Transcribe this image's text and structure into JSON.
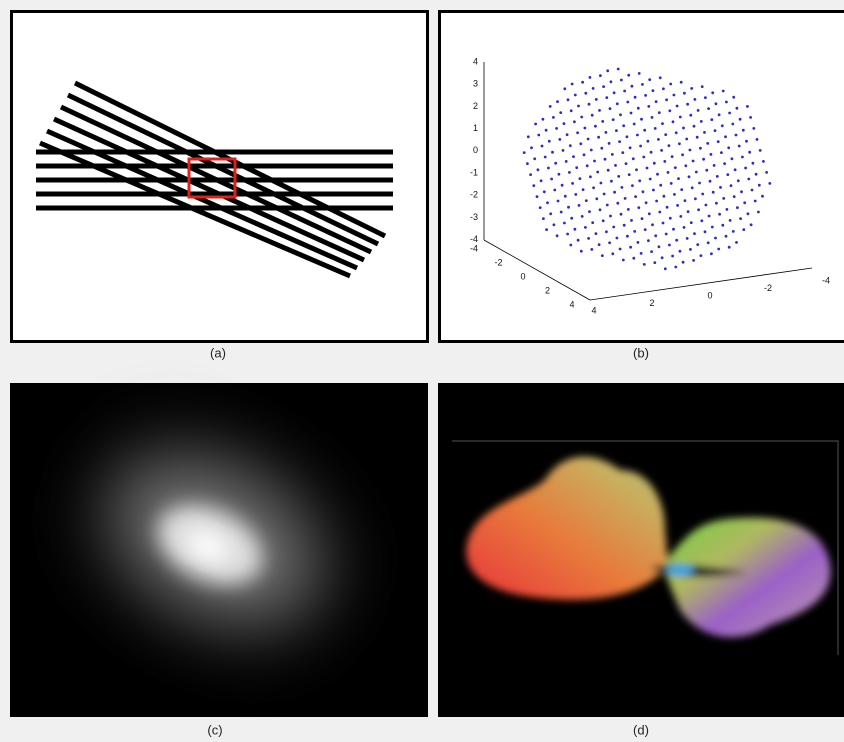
{
  "panels": [
    {
      "caption": "(a)"
    },
    {
      "caption": "(b)",
      "axes": {
        "vertical_ticks": [
          4,
          3,
          2,
          1,
          0,
          -1,
          -2,
          -3,
          -4
        ],
        "depth_ticks": [
          -4,
          -2,
          0,
          2,
          4
        ],
        "horizontal_ticks": [
          4,
          2,
          0,
          -2,
          -4
        ]
      }
    },
    {
      "caption": "(c)"
    },
    {
      "caption": "(d)"
    }
  ]
}
